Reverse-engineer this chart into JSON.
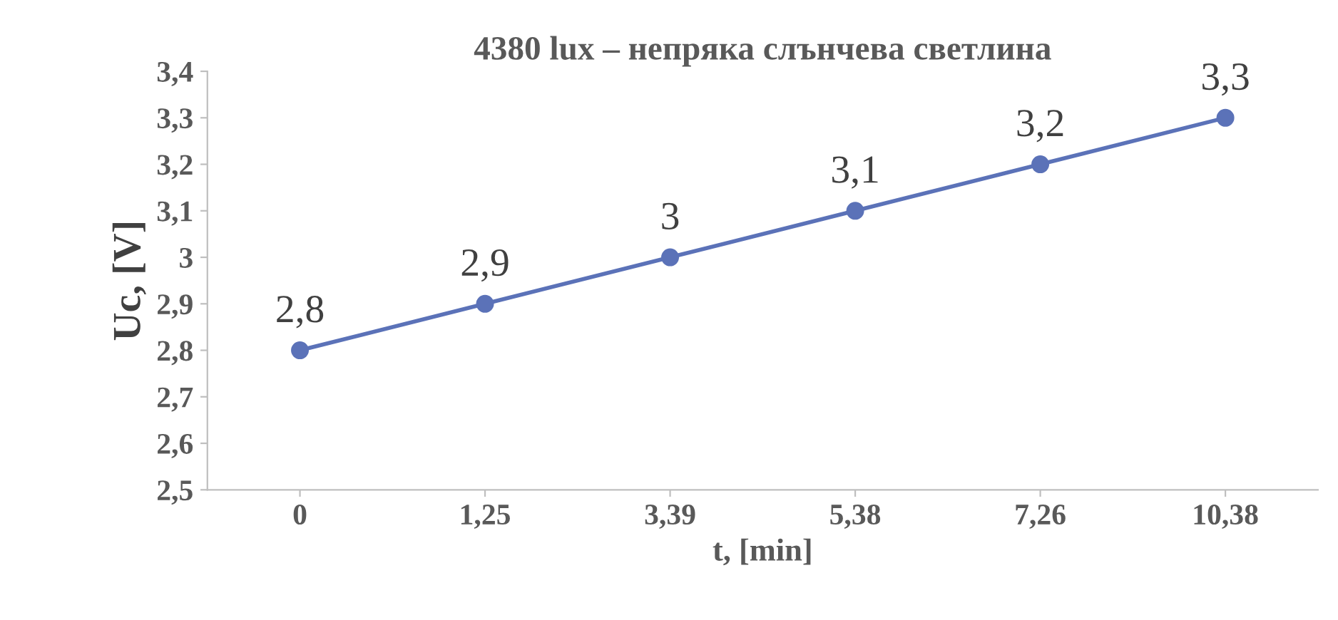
{
  "chart_data": {
    "type": "line",
    "title": "4380 lux – непряка слънчева светлина",
    "xlabel": "t, [min]",
    "ylabel": "Uc, [V]",
    "categories": [
      "0",
      "1,25",
      "3,39",
      "5,38",
      "7,26",
      "10,38"
    ],
    "series": [
      {
        "color": "#5b72b8",
        "values": [
          2.8,
          2.9,
          3.0,
          3.1,
          3.2,
          3.3
        ],
        "value_labels": [
          "2,8",
          "2,9",
          "3",
          "3,1",
          "3,2",
          "3,3"
        ]
      }
    ],
    "ylim": [
      2.5,
      3.4
    ],
    "yticks": [
      {
        "value": 2.5,
        "label": "2,5"
      },
      {
        "value": 2.6,
        "label": "2,6"
      },
      {
        "value": 2.7,
        "label": "2,7"
      },
      {
        "value": 2.8,
        "label": "2,8"
      },
      {
        "value": 2.9,
        "label": "2,9"
      },
      {
        "value": 3,
        "label": "3"
      },
      {
        "value": 3.1,
        "label": "3,1"
      },
      {
        "value": 3.2,
        "label": "3,2"
      },
      {
        "value": 3.3,
        "label": "3,3"
      },
      {
        "value": 3.4,
        "label": "3,4"
      }
    ],
    "marker": "circle",
    "line_style": "solid",
    "grid": false,
    "legend": false
  }
}
